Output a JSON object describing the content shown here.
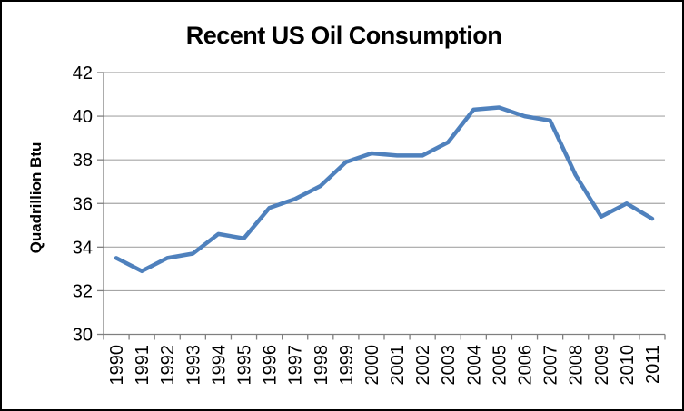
{
  "chart_data": {
    "type": "line",
    "title": "Recent US Oil Consumption",
    "xlabel": "",
    "ylabel": "Quadrillion Btu",
    "categories": [
      "1990",
      "1991",
      "1992",
      "1993",
      "1994",
      "1995",
      "1996",
      "1997",
      "1998",
      "1999",
      "2000",
      "2001",
      "2002",
      "2003",
      "2004",
      "2005",
      "2006",
      "2007",
      "2008",
      "2009",
      "2010",
      "2011"
    ],
    "series": [
      {
        "name": "US Oil Consumption",
        "values": [
          33.5,
          32.9,
          33.5,
          33.7,
          34.6,
          34.4,
          35.8,
          36.2,
          36.8,
          37.9,
          38.3,
          38.2,
          38.2,
          38.8,
          40.3,
          40.4,
          40.0,
          39.8,
          37.3,
          35.4,
          36.0,
          35.3
        ]
      }
    ],
    "ylim": [
      30,
      42
    ],
    "yticks": [
      30,
      32,
      34,
      36,
      38,
      40,
      42
    ],
    "grid": true,
    "legend": "none",
    "x_labels_rotated_90": true,
    "colors": {
      "line": "#4F81BD",
      "gridline": "#A6A6A6",
      "axis": "#7F7F7F",
      "text": "#000000",
      "frame_border": "#000000",
      "background": "#FFFFFF"
    }
  }
}
